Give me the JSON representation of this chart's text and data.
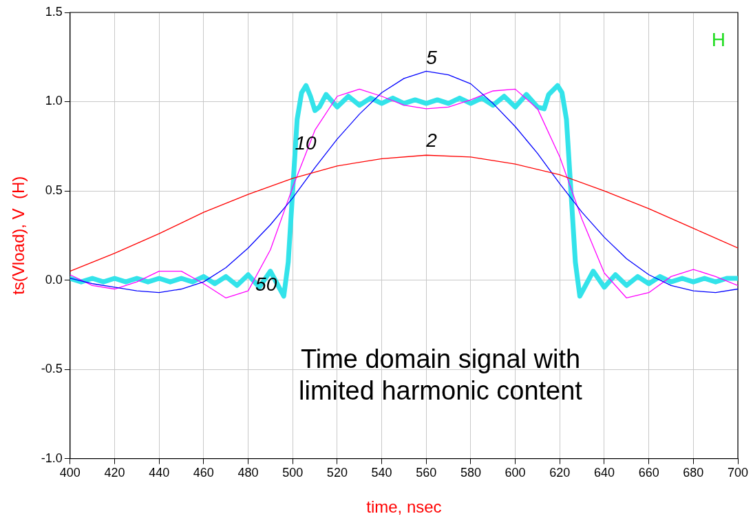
{
  "chart_data": {
    "type": "line",
    "xlabel": "time, nsec",
    "ylabel": "ts(Vload), V  (H)",
    "xlim": [
      400,
      700
    ],
    "xticks": [
      400,
      420,
      440,
      460,
      480,
      500,
      520,
      540,
      560,
      580,
      600,
      620,
      640,
      660,
      680,
      700
    ],
    "ylim": [
      -1,
      1.5
    ],
    "yticks": [
      {
        "value": -1,
        "label": "-1.0"
      },
      {
        "value": -0.5,
        "label": "-0.5"
      },
      {
        "value": 0,
        "label": "0.0"
      },
      {
        "value": 0.5,
        "label": "0.5"
      },
      {
        "value": 1,
        "label": "1.0"
      },
      {
        "value": 1.5,
        "label": "1.5"
      }
    ],
    "grid": true,
    "marker": "none",
    "line_style": "solid",
    "series": [
      {
        "name": "2",
        "color": "#ff0000",
        "x": [
          400,
          420,
          440,
          460,
          480,
          500,
          520,
          540,
          560,
          580,
          600,
          620,
          640,
          660,
          680,
          700
        ],
        "values": [
          0.05,
          0.15,
          0.26,
          0.38,
          0.48,
          0.57,
          0.64,
          0.68,
          0.7,
          0.69,
          0.65,
          0.59,
          0.5,
          0.4,
          0.29,
          0.18
        ]
      },
      {
        "name": "5",
        "color": "#0000ff",
        "x": [
          400,
          410,
          420,
          430,
          440,
          450,
          460,
          470,
          480,
          490,
          500,
          510,
          520,
          530,
          540,
          550,
          560,
          570,
          580,
          590,
          600,
          610,
          620,
          630,
          640,
          650,
          660,
          670,
          680,
          690,
          700
        ],
        "values": [
          0.01,
          -0.02,
          -0.04,
          -0.06,
          -0.07,
          -0.05,
          -0.01,
          0.07,
          0.18,
          0.31,
          0.46,
          0.63,
          0.79,
          0.93,
          1.05,
          1.13,
          1.17,
          1.15,
          1.1,
          0.99,
          0.86,
          0.71,
          0.54,
          0.38,
          0.24,
          0.12,
          0.03,
          -0.03,
          -0.06,
          -0.07,
          -0.05
        ]
      },
      {
        "name": "10",
        "color": "#ff00ff",
        "x": [
          400,
          410,
          420,
          430,
          440,
          450,
          460,
          470,
          480,
          490,
          500,
          510,
          520,
          530,
          540,
          550,
          560,
          570,
          580,
          590,
          600,
          610,
          620,
          630,
          640,
          650,
          660,
          670,
          680,
          690,
          700
        ],
        "values": [
          0.03,
          -0.03,
          -0.05,
          -0.01,
          0.05,
          0.05,
          -0.02,
          -0.1,
          -0.06,
          0.17,
          0.52,
          0.84,
          1.03,
          1.07,
          1.03,
          0.98,
          0.96,
          0.97,
          1.01,
          1.06,
          1.07,
          0.96,
          0.69,
          0.34,
          0.04,
          -0.1,
          -0.07,
          0.02,
          0.06,
          0.02,
          -0.03
        ]
      },
      {
        "name": "50",
        "color": "#33e3ea",
        "x": [
          400,
          405,
          410,
          415,
          420,
          425,
          430,
          435,
          440,
          445,
          450,
          455,
          460,
          465,
          470,
          475,
          480,
          485,
          490,
          493,
          496,
          498,
          500,
          502,
          504,
          506,
          508,
          510,
          512,
          515,
          520,
          525,
          530,
          535,
          540,
          545,
          550,
          555,
          560,
          565,
          570,
          575,
          580,
          585,
          590,
          595,
          600,
          605,
          610,
          613,
          615,
          619,
          621,
          623,
          625,
          627,
          629,
          632,
          635,
          640,
          645,
          650,
          655,
          660,
          665,
          670,
          675,
          680,
          685,
          690,
          695,
          700
        ],
        "values": [
          0.01,
          -0.01,
          0.01,
          -0.01,
          0.01,
          -0.01,
          0.01,
          -0.01,
          0.01,
          -0.01,
          0.01,
          -0.01,
          0.02,
          -0.02,
          0.02,
          -0.03,
          0.03,
          -0.04,
          0.05,
          -0.02,
          -0.09,
          0.1,
          0.5,
          0.9,
          1.05,
          1.09,
          1.03,
          0.95,
          0.97,
          1.04,
          0.97,
          1.03,
          0.98,
          1.02,
          0.99,
          1.02,
          0.99,
          1.01,
          0.99,
          1.01,
          0.99,
          1.02,
          0.99,
          1.02,
          0.98,
          1.03,
          0.97,
          1.04,
          0.97,
          0.96,
          1.04,
          1.09,
          1.05,
          0.9,
          0.5,
          0.1,
          -0.09,
          -0.02,
          0.05,
          -0.04,
          0.03,
          -0.03,
          0.02,
          -0.02,
          0.02,
          -0.01,
          0.01,
          -0.01,
          0.01,
          -0.01,
          0.01,
          0.01
        ]
      }
    ],
    "annotations": [
      "H",
      "Time domain signal with limited harmonic content"
    ]
  }
}
